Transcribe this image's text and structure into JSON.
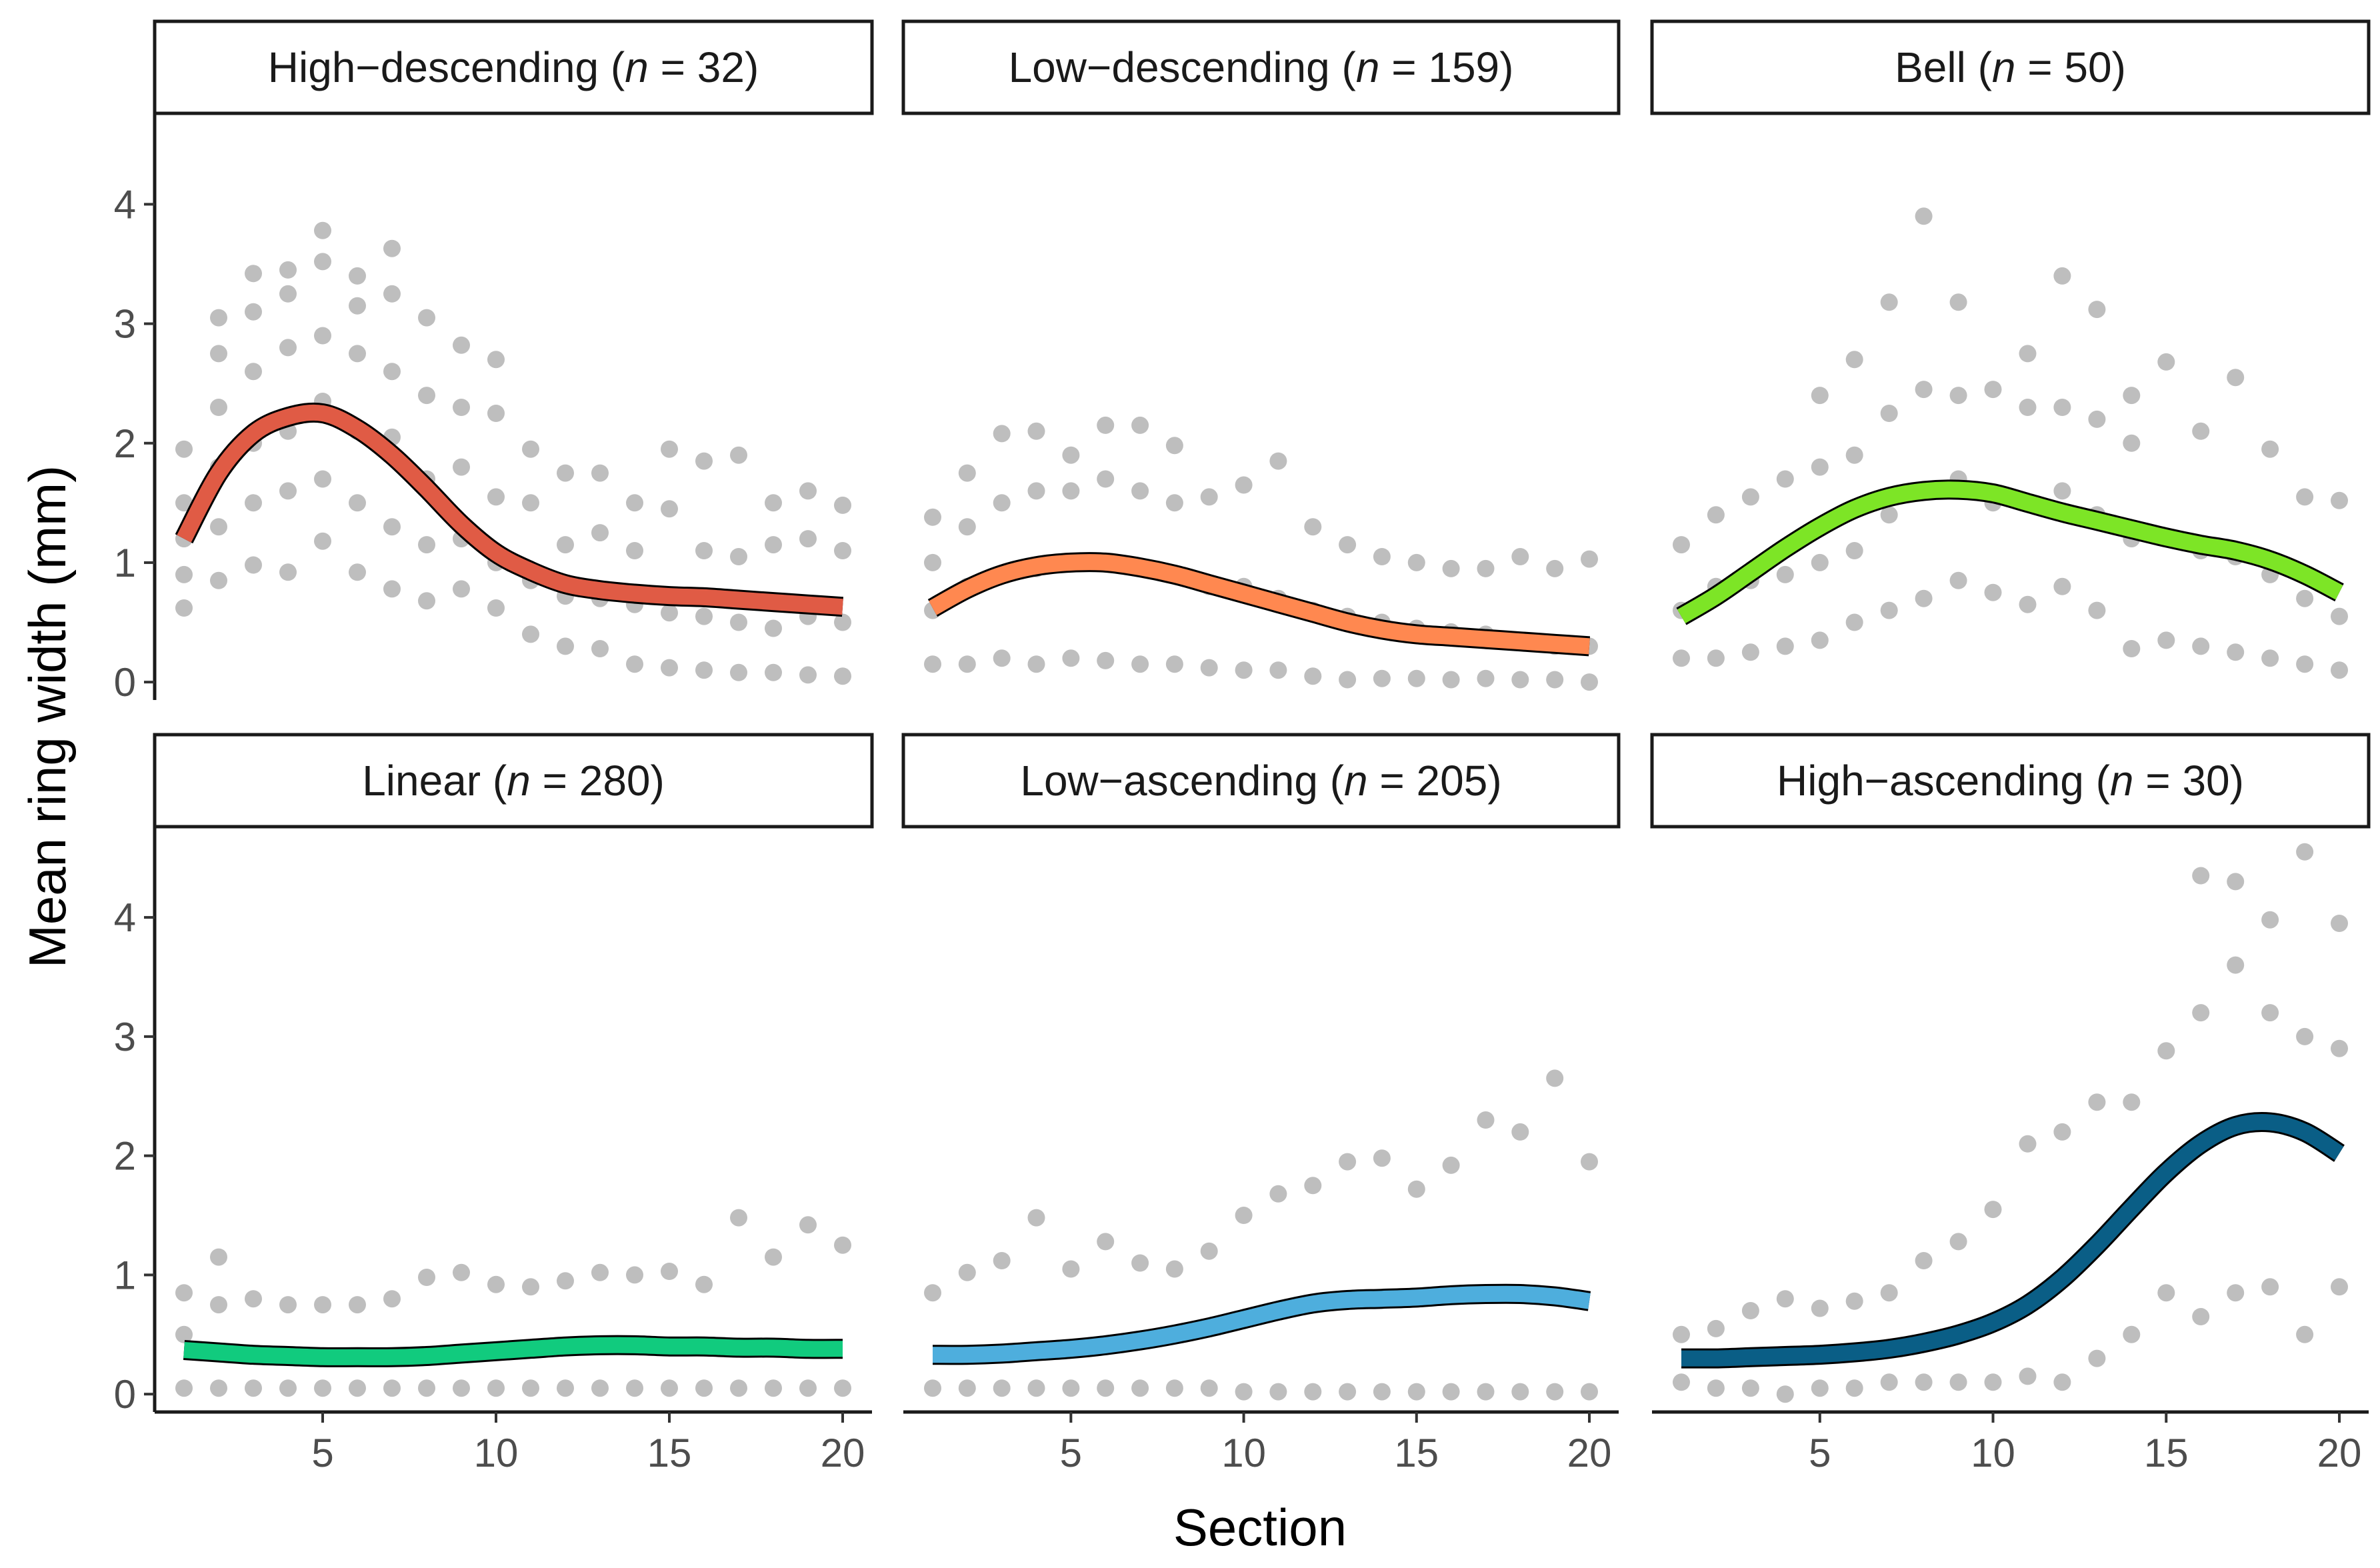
{
  "chart_data": {
    "type": "scatter",
    "xlabel": "Section",
    "ylabel": "Mean ring width (mm)",
    "xlim": [
      0.5,
      20.5
    ],
    "ylim": [
      -0.15,
      4.75
    ],
    "xticks": [
      5,
      10,
      15,
      20
    ],
    "yticks": [
      0,
      1,
      2,
      3,
      4
    ],
    "grid": false,
    "legend": "none",
    "point_color": "#bebebe",
    "facets": [
      {
        "name": "High−descending",
        "n_label": "n",
        "n_value": "= 32)",
        "color": "#e05b45",
        "points": {
          "x": [
            1,
            1,
            1,
            1,
            1,
            2,
            2,
            2,
            2,
            2,
            2,
            3,
            3,
            3,
            3,
            3,
            3,
            4,
            4,
            4,
            4,
            4,
            4,
            5,
            5,
            5,
            5,
            5,
            5,
            6,
            6,
            6,
            6,
            6,
            6,
            7,
            7,
            7,
            7,
            7,
            7,
            8,
            8,
            8,
            8,
            8,
            9,
            9,
            9,
            9,
            9,
            10,
            10,
            10,
            10,
            10,
            11,
            11,
            11,
            11,
            12,
            12,
            12,
            12,
            13,
            13,
            13,
            13,
            14,
            14,
            14,
            14,
            15,
            15,
            15,
            15,
            16,
            16,
            16,
            16,
            17,
            17,
            17,
            17,
            18,
            18,
            18,
            18,
            19,
            19,
            19,
            19,
            20,
            20,
            20,
            20
          ],
          "y": [
            0.62,
            0.9,
            1.2,
            1.5,
            1.95,
            0.85,
            1.3,
            1.8,
            2.3,
            2.75,
            3.05,
            0.98,
            1.5,
            2.0,
            2.6,
            3.1,
            3.42,
            0.92,
            1.6,
            2.1,
            2.8,
            3.25,
            3.45,
            1.18,
            1.7,
            2.35,
            2.9,
            3.52,
            3.78,
            0.92,
            1.5,
            2.1,
            2.75,
            3.15,
            3.4,
            0.78,
            1.3,
            2.05,
            2.6,
            3.25,
            3.63,
            0.68,
            1.15,
            1.7,
            2.4,
            3.05,
            0.78,
            1.2,
            1.8,
            2.3,
            2.82,
            0.62,
            1.0,
            1.55,
            2.25,
            2.7,
            0.4,
            0.85,
            1.5,
            1.95,
            0.3,
            0.72,
            1.15,
            1.75,
            0.28,
            0.7,
            1.25,
            1.75,
            0.15,
            0.65,
            1.1,
            1.5,
            0.12,
            0.58,
            1.45,
            1.95,
            0.1,
            0.55,
            1.1,
            1.85,
            0.08,
            0.5,
            1.05,
            1.9,
            0.08,
            0.45,
            1.15,
            1.5,
            0.06,
            0.55,
            1.2,
            1.6,
            0.05,
            0.5,
            1.1,
            1.48
          ]
        },
        "curve": {
          "x": [
            1,
            2,
            3,
            4,
            5,
            6,
            7,
            8,
            9,
            10,
            11,
            12,
            13,
            14,
            15,
            16,
            17,
            18,
            19,
            20
          ],
          "y": [
            1.2,
            1.75,
            2.08,
            2.22,
            2.25,
            2.12,
            1.9,
            1.62,
            1.32,
            1.08,
            0.93,
            0.82,
            0.77,
            0.74,
            0.72,
            0.71,
            0.69,
            0.67,
            0.65,
            0.63
          ]
        }
      },
      {
        "name": "Low−descending",
        "n_label": "n",
        "n_value": "= 159)",
        "color": "#ff8850",
        "points": {
          "x": [
            1,
            1,
            1,
            1,
            2,
            2,
            2,
            2,
            3,
            3,
            3,
            3,
            4,
            4,
            4,
            4,
            5,
            5,
            5,
            5,
            6,
            6,
            6,
            6,
            7,
            7,
            7,
            7,
            8,
            8,
            8,
            8,
            9,
            9,
            9,
            10,
            10,
            10,
            11,
            11,
            11,
            12,
            12,
            12,
            13,
            13,
            13,
            14,
            14,
            14,
            15,
            15,
            15,
            16,
            16,
            16,
            17,
            17,
            17,
            18,
            18,
            18,
            19,
            19,
            19,
            20,
            20,
            20
          ],
          "y": [
            0.15,
            0.6,
            1.0,
            1.38,
            0.15,
            0.8,
            1.3,
            1.75,
            0.2,
            0.9,
            1.5,
            2.08,
            0.15,
            0.95,
            1.6,
            2.1,
            0.2,
            1.0,
            1.6,
            1.9,
            0.18,
            1.0,
            1.7,
            2.15,
            0.15,
            0.95,
            1.6,
            2.15,
            0.15,
            0.9,
            1.5,
            1.98,
            0.12,
            0.8,
            1.55,
            0.1,
            0.8,
            1.65,
            0.1,
            0.7,
            1.85,
            0.05,
            0.6,
            1.3,
            0.02,
            0.55,
            1.15,
            0.03,
            0.5,
            1.05,
            0.03,
            0.45,
            1.0,
            0.02,
            0.42,
            0.95,
            0.03,
            0.4,
            0.95,
            0.02,
            0.35,
            1.05,
            0.02,
            0.3,
            0.95,
            0.0,
            0.3,
            1.03
          ]
        },
        "curve": {
          "x": [
            1,
            2,
            3,
            4,
            5,
            6,
            7,
            8,
            9,
            10,
            11,
            12,
            13,
            14,
            15,
            16,
            17,
            18,
            19,
            20
          ],
          "y": [
            0.62,
            0.78,
            0.9,
            0.97,
            1.0,
            1.0,
            0.96,
            0.9,
            0.82,
            0.74,
            0.66,
            0.58,
            0.5,
            0.44,
            0.4,
            0.38,
            0.36,
            0.34,
            0.32,
            0.3
          ]
        }
      },
      {
        "name": "Bell",
        "n_label": "n",
        "n_value": "= 50)",
        "color": "#7de526",
        "points": {
          "x": [
            1,
            1,
            1,
            2,
            2,
            2,
            3,
            3,
            3,
            4,
            4,
            4,
            5,
            5,
            5,
            5,
            6,
            6,
            6,
            6,
            7,
            7,
            7,
            7,
            8,
            8,
            8,
            8,
            9,
            9,
            9,
            9,
            10,
            10,
            10,
            11,
            11,
            11,
            11,
            12,
            12,
            12,
            12,
            13,
            13,
            13,
            13,
            14,
            14,
            14,
            14,
            15,
            15,
            15,
            16,
            16,
            16,
            17,
            17,
            17,
            18,
            18,
            18,
            19,
            19,
            19,
            20,
            20,
            20
          ],
          "y": [
            0.2,
            0.6,
            1.15,
            0.2,
            0.8,
            1.4,
            0.25,
            0.85,
            1.55,
            0.3,
            0.9,
            1.7,
            0.35,
            1.0,
            1.8,
            2.4,
            0.5,
            1.1,
            1.9,
            2.7,
            0.6,
            1.4,
            2.25,
            3.18,
            0.7,
            1.6,
            2.45,
            3.9,
            0.85,
            1.7,
            2.4,
            3.18,
            0.75,
            1.5,
            2.45,
            0.65,
            1.5,
            2.3,
            2.75,
            0.8,
            1.6,
            2.3,
            3.4,
            0.6,
            1.4,
            2.2,
            3.12,
            0.28,
            1.2,
            2.0,
            2.4,
            0.35,
            1.2,
            2.68,
            0.3,
            1.1,
            2.1,
            0.25,
            1.05,
            2.55,
            0.2,
            0.9,
            1.95,
            0.15,
            0.7,
            1.55,
            0.1,
            0.55,
            1.52
          ]
        },
        "curve": {
          "x": [
            1,
            2,
            3,
            4,
            5,
            6,
            7,
            8,
            9,
            10,
            11,
            12,
            13,
            14,
            15,
            16,
            17,
            18,
            19,
            20
          ],
          "y": [
            0.55,
            0.72,
            0.92,
            1.12,
            1.3,
            1.45,
            1.55,
            1.6,
            1.61,
            1.58,
            1.5,
            1.42,
            1.35,
            1.28,
            1.21,
            1.15,
            1.1,
            1.02,
            0.9,
            0.75
          ]
        }
      },
      {
        "name": "Linear",
        "n_label": "n",
        "n_value": "= 280)",
        "color": "#11cb7e",
        "points": {
          "x": [
            1,
            1,
            1,
            2,
            2,
            2,
            3,
            3,
            4,
            4,
            5,
            5,
            6,
            6,
            7,
            7,
            8,
            8,
            9,
            9,
            10,
            10,
            11,
            11,
            12,
            12,
            13,
            13,
            14,
            14,
            15,
            15,
            16,
            16,
            17,
            17,
            18,
            18,
            19,
            19,
            20,
            20
          ],
          "y": [
            0.05,
            0.5,
            0.85,
            0.05,
            0.75,
            1.15,
            0.05,
            0.8,
            0.05,
            0.75,
            0.05,
            0.75,
            0.05,
            0.75,
            0.05,
            0.8,
            0.05,
            0.98,
            0.05,
            1.02,
            0.05,
            0.92,
            0.05,
            0.9,
            0.05,
            0.95,
            0.05,
            1.02,
            0.05,
            1.0,
            0.05,
            1.03,
            0.05,
            0.92,
            0.05,
            1.48,
            0.05,
            1.15,
            0.05,
            1.42,
            0.05,
            1.25
          ]
        },
        "curve": {
          "x": [
            1,
            2,
            3,
            4,
            5,
            6,
            7,
            8,
            9,
            10,
            11,
            12,
            13,
            14,
            15,
            16,
            17,
            18,
            19,
            20
          ],
          "y": [
            0.37,
            0.35,
            0.33,
            0.32,
            0.31,
            0.31,
            0.31,
            0.32,
            0.34,
            0.36,
            0.38,
            0.4,
            0.41,
            0.41,
            0.4,
            0.4,
            0.39,
            0.39,
            0.38,
            0.38
          ]
        }
      },
      {
        "name": "Low−ascending",
        "n_label": "n",
        "n_value": "= 205)",
        "color": "#4eaedd",
        "points": {
          "x": [
            1,
            1,
            2,
            2,
            3,
            3,
            4,
            4,
            5,
            5,
            6,
            6,
            7,
            7,
            8,
            8,
            9,
            9,
            10,
            10,
            11,
            11,
            12,
            12,
            13,
            13,
            14,
            14,
            15,
            15,
            16,
            16,
            17,
            17,
            18,
            18,
            19,
            19,
            20,
            20
          ],
          "y": [
            0.05,
            0.85,
            0.05,
            1.02,
            0.05,
            1.12,
            0.05,
            1.48,
            0.05,
            1.05,
            0.05,
            1.28,
            0.05,
            1.1,
            0.05,
            1.05,
            0.05,
            1.2,
            0.02,
            1.5,
            0.02,
            1.68,
            0.02,
            1.75,
            0.02,
            1.95,
            0.02,
            1.98,
            0.02,
            1.72,
            0.02,
            1.92,
            0.02,
            2.3,
            0.02,
            2.2,
            0.02,
            2.65,
            0.02,
            1.95
          ]
        },
        "curve": {
          "x": [
            1,
            2,
            3,
            4,
            5,
            6,
            7,
            8,
            9,
            10,
            11,
            12,
            13,
            14,
            15,
            16,
            17,
            18,
            19,
            20
          ],
          "y": [
            0.33,
            0.33,
            0.34,
            0.36,
            0.38,
            0.41,
            0.45,
            0.5,
            0.56,
            0.63,
            0.7,
            0.76,
            0.79,
            0.8,
            0.81,
            0.83,
            0.84,
            0.84,
            0.82,
            0.78
          ]
        }
      },
      {
        "name": "High−ascending",
        "n_label": "n",
        "n_value": "= 30)",
        "color": "#0a5e86",
        "points": {
          "x": [
            1,
            1,
            2,
            2,
            3,
            3,
            4,
            4,
            5,
            5,
            6,
            6,
            7,
            7,
            8,
            8,
            9,
            9,
            10,
            10,
            11,
            11,
            12,
            12,
            13,
            13,
            14,
            14,
            15,
            15,
            16,
            16,
            16,
            17,
            17,
            17,
            18,
            18,
            18,
            19,
            19,
            19,
            20,
            20,
            20
          ],
          "y": [
            0.1,
            0.5,
            0.05,
            0.55,
            0.05,
            0.7,
            0.0,
            0.8,
            0.05,
            0.72,
            0.05,
            0.78,
            0.1,
            0.85,
            0.1,
            1.12,
            0.1,
            1.28,
            0.1,
            1.55,
            0.15,
            2.1,
            0.1,
            2.2,
            0.3,
            2.45,
            0.5,
            2.45,
            0.85,
            2.88,
            0.65,
            3.2,
            4.35,
            0.85,
            3.6,
            4.3,
            0.9,
            3.2,
            3.98,
            0.5,
            3.0,
            4.55,
            0.9,
            2.9,
            3.95
          ]
        },
        "curve": {
          "x": [
            1,
            2,
            3,
            4,
            5,
            6,
            7,
            8,
            9,
            10,
            11,
            12,
            13,
            14,
            15,
            16,
            17,
            18,
            19,
            20
          ],
          "y": [
            0.3,
            0.3,
            0.31,
            0.32,
            0.33,
            0.35,
            0.38,
            0.43,
            0.5,
            0.6,
            0.75,
            0.97,
            1.25,
            1.56,
            1.86,
            2.1,
            2.25,
            2.28,
            2.2,
            2.02
          ]
        }
      }
    ]
  }
}
